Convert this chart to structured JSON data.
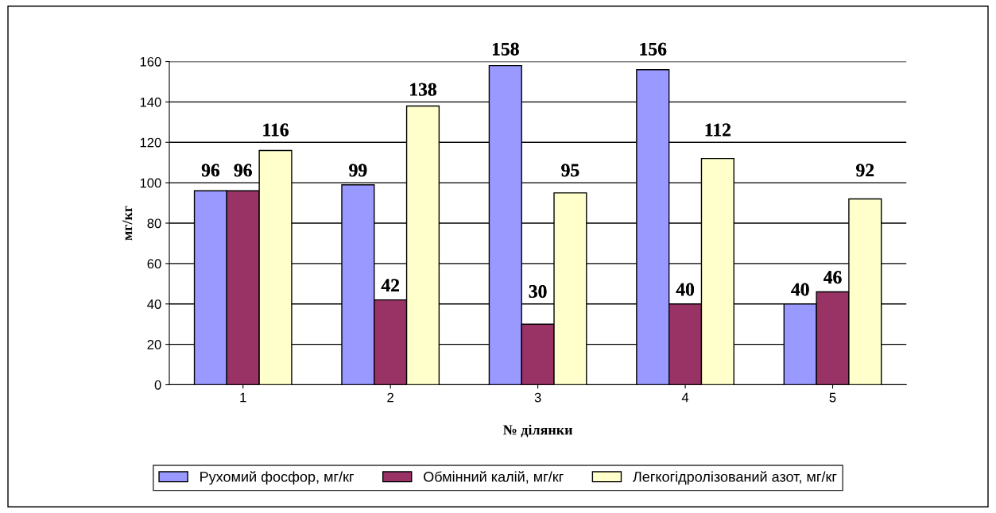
{
  "chart_data": {
    "type": "bar",
    "xlabel": "№ ділянки",
    "ylabel": "мг/кг",
    "categories": [
      "1",
      "2",
      "3",
      "4",
      "5"
    ],
    "series": [
      {
        "name": "Рухомий фосфор, мг/кг",
        "color": "#9999ff",
        "values": [
          96,
          99,
          158,
          156,
          40
        ]
      },
      {
        "name": "Обмінний калій, мг/кг",
        "color": "#993366",
        "values": [
          96,
          42,
          30,
          40,
          46
        ]
      },
      {
        "name": "Легкогідролізований азот, мг/кг",
        "color": "#ffffcc",
        "values": [
          116,
          138,
          95,
          112,
          92
        ]
      }
    ],
    "ylim": [
      0,
      160
    ],
    "yticks": [
      0,
      20,
      40,
      60,
      80,
      100,
      120,
      140,
      160
    ],
    "grid": "y",
    "legend": "bottom",
    "data_labels": true
  }
}
